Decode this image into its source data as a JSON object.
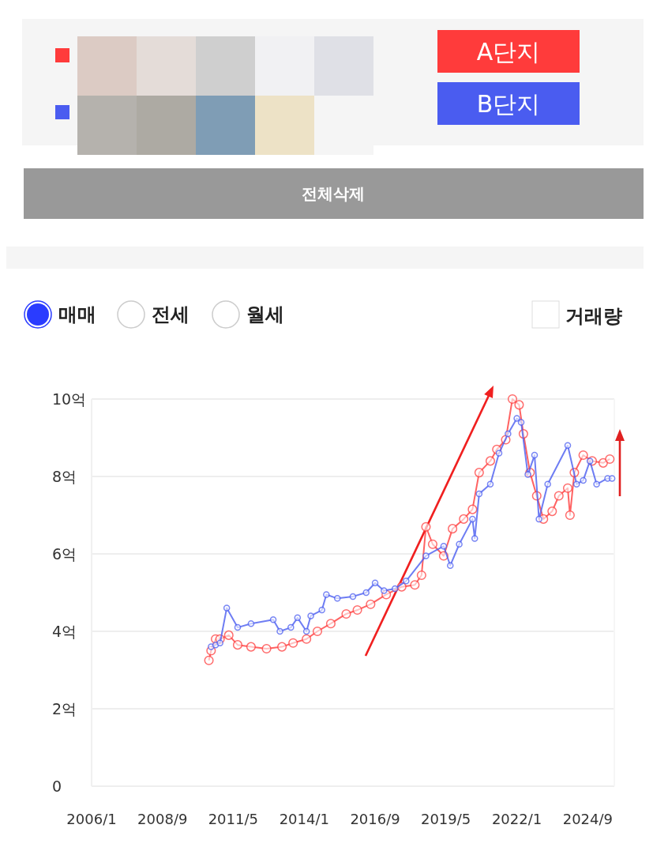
{
  "chart_data": {
    "type": "line",
    "legend": "top",
    "grid": "y",
    "marker": "circle",
    "line_style": "solid",
    "annotations": [
      "전체삭제",
      "매매",
      "전세",
      "월세",
      "거래량"
    ],
    "xlim": [
      "2006-01",
      "2025-09"
    ],
    "xticks": [
      {
        "value": "2006-01",
        "label": "2006/1"
      },
      {
        "value": "2008-09",
        "label": "2008/9"
      },
      {
        "value": "2011-05",
        "label": "2011/5"
      },
      {
        "value": "2014-01",
        "label": "2014/1"
      },
      {
        "value": "2016-09",
        "label": "2016/9"
      },
      {
        "value": "2019-05",
        "label": "2019/5"
      },
      {
        "value": "2022-01",
        "label": "2022/1"
      },
      {
        "value": "2024-09",
        "label": "2024/9"
      }
    ],
    "ylim": [
      0,
      10
    ],
    "yticks": [
      0,
      {
        "value": 2,
        "label": "2억"
      },
      {
        "value": 4,
        "label": "4억"
      },
      {
        "value": 6,
        "label": "6억"
      },
      {
        "value": 8,
        "label": "8억"
      },
      {
        "value": 10,
        "label": "10억"
      }
    ],
    "series": [
      {
        "name": "A단지",
        "color": "#ff3b3b",
        "x": [
          "2010-06",
          "2010-07",
          "2010-09",
          "2010-11",
          "2011-03",
          "2011-07",
          "2012-01",
          "2012-08",
          "2013-03",
          "2013-08",
          "2014-02",
          "2014-07",
          "2015-01",
          "2015-08",
          "2016-01",
          "2016-07",
          "2017-02",
          "2017-09",
          "2018-03",
          "2018-06",
          "2018-08",
          "2018-11",
          "2019-04",
          "2019-08",
          "2020-01",
          "2020-05",
          "2020-08",
          "2021-01",
          "2021-04",
          "2021-08",
          "2021-11",
          "2022-02",
          "2022-04",
          "2022-07",
          "2022-10",
          "2023-01",
          "2023-05",
          "2023-08",
          "2023-12",
          "2024-01",
          "2024-03",
          "2024-07",
          "2024-11",
          "2025-04",
          "2025-07"
        ],
        "values": [
          3.25,
          3.5,
          3.8,
          3.8,
          3.9,
          3.65,
          3.6,
          3.55,
          3.6,
          3.7,
          3.8,
          4.0,
          4.2,
          4.45,
          4.55,
          4.7,
          4.95,
          5.15,
          5.2,
          5.45,
          6.7,
          6.25,
          5.95,
          6.65,
          6.9,
          7.15,
          8.1,
          8.4,
          8.7,
          8.95,
          10.0,
          9.85,
          9.1,
          8.1,
          7.5,
          6.9,
          7.1,
          7.5,
          7.7,
          7.0,
          8.1,
          8.55,
          8.4,
          8.35,
          8.45
        ]
      },
      {
        "name": "B단지",
        "color": "#4a5cf0",
        "x": [
          "2010-07",
          "2010-09",
          "2010-11",
          "2011-02",
          "2011-07",
          "2012-01",
          "2012-11",
          "2013-02",
          "2013-07",
          "2013-10",
          "2014-02",
          "2014-04",
          "2014-09",
          "2014-11",
          "2015-04",
          "2015-11",
          "2016-05",
          "2016-09",
          "2017-01",
          "2017-06",
          "2017-11",
          "2018-08",
          "2019-04",
          "2019-07",
          "2019-11",
          "2020-05",
          "2020-06",
          "2020-08",
          "2021-01",
          "2021-05",
          "2021-09",
          "2022-01",
          "2022-03",
          "2022-06",
          "2022-09",
          "2022-11",
          "2023-03",
          "2023-12",
          "2024-04",
          "2024-07",
          "2024-10",
          "2025-01",
          "2025-06",
          "2025-08"
        ],
        "values": [
          3.6,
          3.65,
          3.7,
          4.6,
          4.1,
          4.2,
          4.3,
          4.0,
          4.1,
          4.35,
          4.0,
          4.4,
          4.55,
          4.95,
          4.85,
          4.9,
          5.0,
          5.25,
          5.05,
          5.1,
          5.3,
          5.95,
          6.2,
          5.7,
          6.25,
          6.9,
          6.4,
          7.55,
          7.8,
          8.6,
          9.1,
          9.5,
          9.4,
          8.05,
          8.55,
          6.9,
          7.8,
          8.8,
          7.8,
          7.9,
          8.4,
          7.8,
          7.95,
          7.95
        ]
      }
    ]
  }
}
